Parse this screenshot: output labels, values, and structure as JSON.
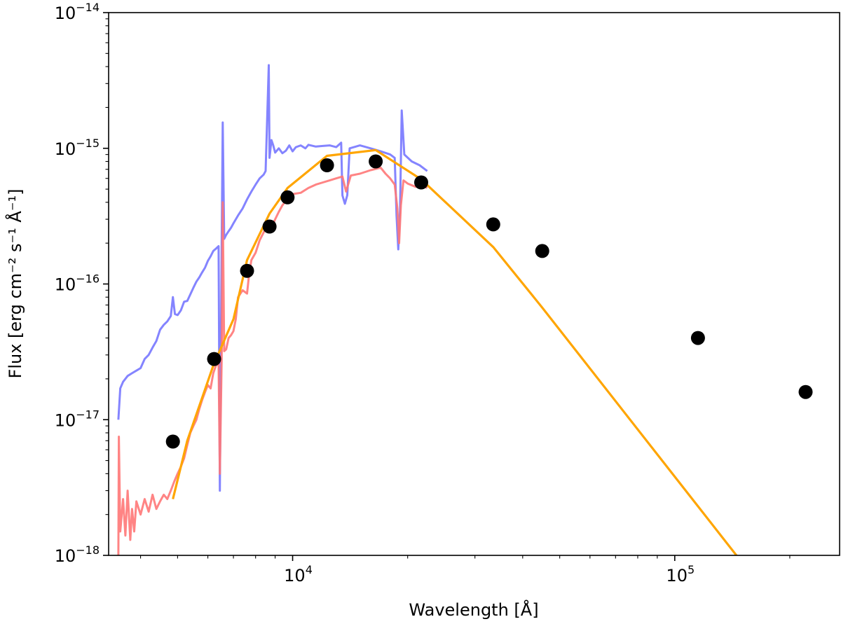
{
  "chart_data": {
    "type": "line",
    "title": "",
    "xlabel": "Wavelength [Å]",
    "ylabel": "Flux [erg cm⁻² s⁻¹ Å⁻¹]",
    "x_scale": "log",
    "y_scale": "log",
    "xlim": [
      3300,
      270000
    ],
    "ylim": [
      1e-18,
      1e-14
    ],
    "grid": false,
    "x_tick_labels": [
      {
        "value": 10000,
        "base": "10",
        "exp": "4"
      },
      {
        "value": 100000,
        "base": "10",
        "exp": "5"
      }
    ],
    "y_tick_labels": [
      {
        "value": 1e-18,
        "base": "10",
        "exp": "−18"
      },
      {
        "value": 1e-17,
        "base": "10",
        "exp": "−17"
      },
      {
        "value": 1e-16,
        "base": "10",
        "exp": "−16"
      },
      {
        "value": 1e-15,
        "base": "10",
        "exp": "−15"
      },
      {
        "value": 1e-14,
        "base": "10",
        "exp": "−14"
      }
    ],
    "series": [
      {
        "kind": "spectrum",
        "color": "#7777ff",
        "points": [
          [
            3500,
            1e-17
          ],
          [
            3540,
            1.7e-17
          ],
          [
            3600,
            1.9e-17
          ],
          [
            3700,
            2.1e-17
          ],
          [
            3800,
            2.2e-17
          ],
          [
            3900,
            2.3e-17
          ],
          [
            4000,
            2.4e-17
          ],
          [
            4100,
            2.8e-17
          ],
          [
            4200,
            3e-17
          ],
          [
            4300,
            3.4e-17
          ],
          [
            4400,
            3.8e-17
          ],
          [
            4500,
            4.6e-17
          ],
          [
            4600,
            5e-17
          ],
          [
            4700,
            5.3e-17
          ],
          [
            4800,
            5.8e-17
          ],
          [
            4861,
            8e-17
          ],
          [
            4920,
            6e-17
          ],
          [
            5000,
            5.9e-17
          ],
          [
            5100,
            6.4e-17
          ],
          [
            5200,
            7.4e-17
          ],
          [
            5300,
            7.5e-17
          ],
          [
            5400,
            8.4e-17
          ],
          [
            5500,
            9.4e-17
          ],
          [
            5600,
            1.04e-16
          ],
          [
            5700,
            1.12e-16
          ],
          [
            5800,
            1.22e-16
          ],
          [
            5900,
            1.32e-16
          ],
          [
            6000,
            1.48e-16
          ],
          [
            6100,
            1.6e-16
          ],
          [
            6200,
            1.75e-16
          ],
          [
            6300,
            1.82e-16
          ],
          [
            6400,
            1.9e-16
          ],
          [
            6450,
            3e-18
          ],
          [
            6520,
            1.95e-16
          ],
          [
            6563,
            1.55e-15
          ],
          [
            6620,
            2.15e-16
          ],
          [
            6700,
            2.3e-16
          ],
          [
            6800,
            2.45e-16
          ],
          [
            6900,
            2.6e-16
          ],
          [
            7000,
            2.8e-16
          ],
          [
            7200,
            3.2e-16
          ],
          [
            7400,
            3.6e-16
          ],
          [
            7600,
            4.2e-16
          ],
          [
            7800,
            4.8e-16
          ],
          [
            8000,
            5.4e-16
          ],
          [
            8200,
            6e-16
          ],
          [
            8400,
            6.4e-16
          ],
          [
            8500,
            6.8e-16
          ],
          [
            8662,
            4.1e-15
          ],
          [
            8700,
            8.5e-16
          ],
          [
            8800,
            1.15e-15
          ],
          [
            8900,
            1.05e-15
          ],
          [
            9000,
            9.3e-16
          ],
          [
            9200,
            1e-15
          ],
          [
            9400,
            9.2e-16
          ],
          [
            9600,
            9.6e-16
          ],
          [
            9800,
            1.05e-15
          ],
          [
            10000,
            9.5e-16
          ],
          [
            10200,
            1.02e-15
          ],
          [
            10500,
            1.05e-15
          ],
          [
            10800,
            1e-15
          ],
          [
            11000,
            1.06e-15
          ],
          [
            11500,
            1.03e-15
          ],
          [
            12000,
            1.04e-15
          ],
          [
            12500,
            1.05e-15
          ],
          [
            13000,
            1.02e-15
          ],
          [
            13400,
            1.1e-15
          ],
          [
            13500,
            4.5e-16
          ],
          [
            13700,
            3.9e-16
          ],
          [
            13900,
            4.5e-16
          ],
          [
            14100,
            1e-15
          ],
          [
            15000,
            1.05e-15
          ],
          [
            16000,
            1e-15
          ],
          [
            17000,
            9.5e-16
          ],
          [
            18000,
            9e-16
          ],
          [
            18500,
            8.5e-16
          ],
          [
            18700,
            3.2e-16
          ],
          [
            18900,
            1.8e-16
          ],
          [
            19100,
            3.5e-16
          ],
          [
            19300,
            1.9e-15
          ],
          [
            19600,
            9e-16
          ],
          [
            20500,
            8e-16
          ],
          [
            21500,
            7.5e-16
          ],
          [
            22500,
            6.8e-16
          ]
        ]
      },
      {
        "kind": "spectrum",
        "color": "#ff7777",
        "points": [
          [
            3500,
            1e-18
          ],
          [
            3510,
            7.5e-18
          ],
          [
            3540,
            1.5e-18
          ],
          [
            3600,
            2.6e-18
          ],
          [
            3650,
            1.4e-18
          ],
          [
            3700,
            3e-18
          ],
          [
            3760,
            1.3e-18
          ],
          [
            3800,
            2.2e-18
          ],
          [
            3850,
            1.5e-18
          ],
          [
            3900,
            2.5e-18
          ],
          [
            4000,
            2e-18
          ],
          [
            4100,
            2.6e-18
          ],
          [
            4200,
            2.1e-18
          ],
          [
            4300,
            2.8e-18
          ],
          [
            4400,
            2.2e-18
          ],
          [
            4500,
            2.5e-18
          ],
          [
            4600,
            2.8e-18
          ],
          [
            4700,
            2.6e-18
          ],
          [
            4800,
            3e-18
          ],
          [
            4900,
            3.5e-18
          ],
          [
            5000,
            4e-18
          ],
          [
            5100,
            4.5e-18
          ],
          [
            5200,
            5.2e-18
          ],
          [
            5300,
            6.5e-18
          ],
          [
            5400,
            8e-18
          ],
          [
            5500,
            9e-18
          ],
          [
            5600,
            1e-17
          ],
          [
            5700,
            1.2e-17
          ],
          [
            5800,
            1.4e-17
          ],
          [
            5900,
            1.6e-17
          ],
          [
            6000,
            1.8e-17
          ],
          [
            6100,
            1.7e-17
          ],
          [
            6200,
            2.2e-17
          ],
          [
            6300,
            2.5e-17
          ],
          [
            6400,
            2.6e-17
          ],
          [
            6450,
            4e-18
          ],
          [
            6520,
            2.8e-17
          ],
          [
            6563,
            4e-16
          ],
          [
            6620,
            3.2e-17
          ],
          [
            6700,
            3.3e-17
          ],
          [
            6800,
            4e-17
          ],
          [
            6900,
            4.2e-17
          ],
          [
            7000,
            4.5e-17
          ],
          [
            7100,
            5.5e-17
          ],
          [
            7200,
            8e-17
          ],
          [
            7400,
            9e-17
          ],
          [
            7600,
            8.5e-17
          ],
          [
            7700,
            1.2e-16
          ],
          [
            7800,
            1.5e-16
          ],
          [
            8000,
            1.7e-16
          ],
          [
            8200,
            2.1e-16
          ],
          [
            8400,
            2.4e-16
          ],
          [
            8600,
            2.8e-16
          ],
          [
            8800,
            2.6e-16
          ],
          [
            9000,
            3e-16
          ],
          [
            9200,
            3.4e-16
          ],
          [
            9400,
            3.8e-16
          ],
          [
            9600,
            4.1e-16
          ],
          [
            9800,
            4.4e-16
          ],
          [
            10000,
            4.6e-16
          ],
          [
            10500,
            4.7e-16
          ],
          [
            11000,
            5.1e-16
          ],
          [
            11500,
            5.4e-16
          ],
          [
            12000,
            5.6e-16
          ],
          [
            12500,
            5.8e-16
          ],
          [
            13000,
            6e-16
          ],
          [
            13500,
            6.2e-16
          ],
          [
            13800,
            4.8e-16
          ],
          [
            14200,
            6.3e-16
          ],
          [
            15000,
            6.5e-16
          ],
          [
            16000,
            6.9e-16
          ],
          [
            17000,
            7.2e-16
          ],
          [
            17500,
            6.5e-16
          ],
          [
            18000,
            6e-16
          ],
          [
            18500,
            5.4e-16
          ],
          [
            18800,
            3.6e-16
          ],
          [
            19000,
            2e-16
          ],
          [
            19200,
            3.8e-16
          ],
          [
            19500,
            5.8e-16
          ],
          [
            20000,
            5.5e-16
          ],
          [
            21000,
            5.2e-16
          ],
          [
            22000,
            5.3e-16
          ],
          [
            22500,
            5.1e-16
          ]
        ]
      },
      {
        "kind": "model",
        "color": "#ffa500",
        "points": [
          [
            4860,
            2.6e-18
          ],
          [
            5300,
            7e-18
          ],
          [
            6200,
            2.5e-17
          ],
          [
            7000,
            5.5e-17
          ],
          [
            7600,
            1.5e-16
          ],
          [
            8700,
            3.3e-16
          ],
          [
            9700,
            5.1e-16
          ],
          [
            12300,
            8.8e-16
          ],
          [
            16500,
            9.7e-16
          ],
          [
            21700,
            5.9e-16
          ],
          [
            33500,
            1.87e-16
          ],
          [
            45000,
            6.7e-17
          ],
          [
            115000,
            2.3e-18
          ],
          [
            145000,
            1e-18
          ]
        ]
      }
    ],
    "photometry": {
      "color": "#000000",
      "points": [
        [
          4860,
          6.9e-18
        ],
        [
          6230,
          2.8e-17
        ],
        [
          7600,
          1.25e-16
        ],
        [
          8700,
          2.65e-16
        ],
        [
          9700,
          4.35e-16
        ],
        [
          12300,
          7.5e-16
        ],
        [
          16500,
          8e-16
        ],
        [
          21700,
          5.6e-16
        ],
        [
          33500,
          2.75e-16
        ],
        [
          45000,
          1.75e-16
        ],
        [
          115000,
          4e-17
        ],
        [
          220000,
          1.6e-17
        ]
      ]
    }
  }
}
